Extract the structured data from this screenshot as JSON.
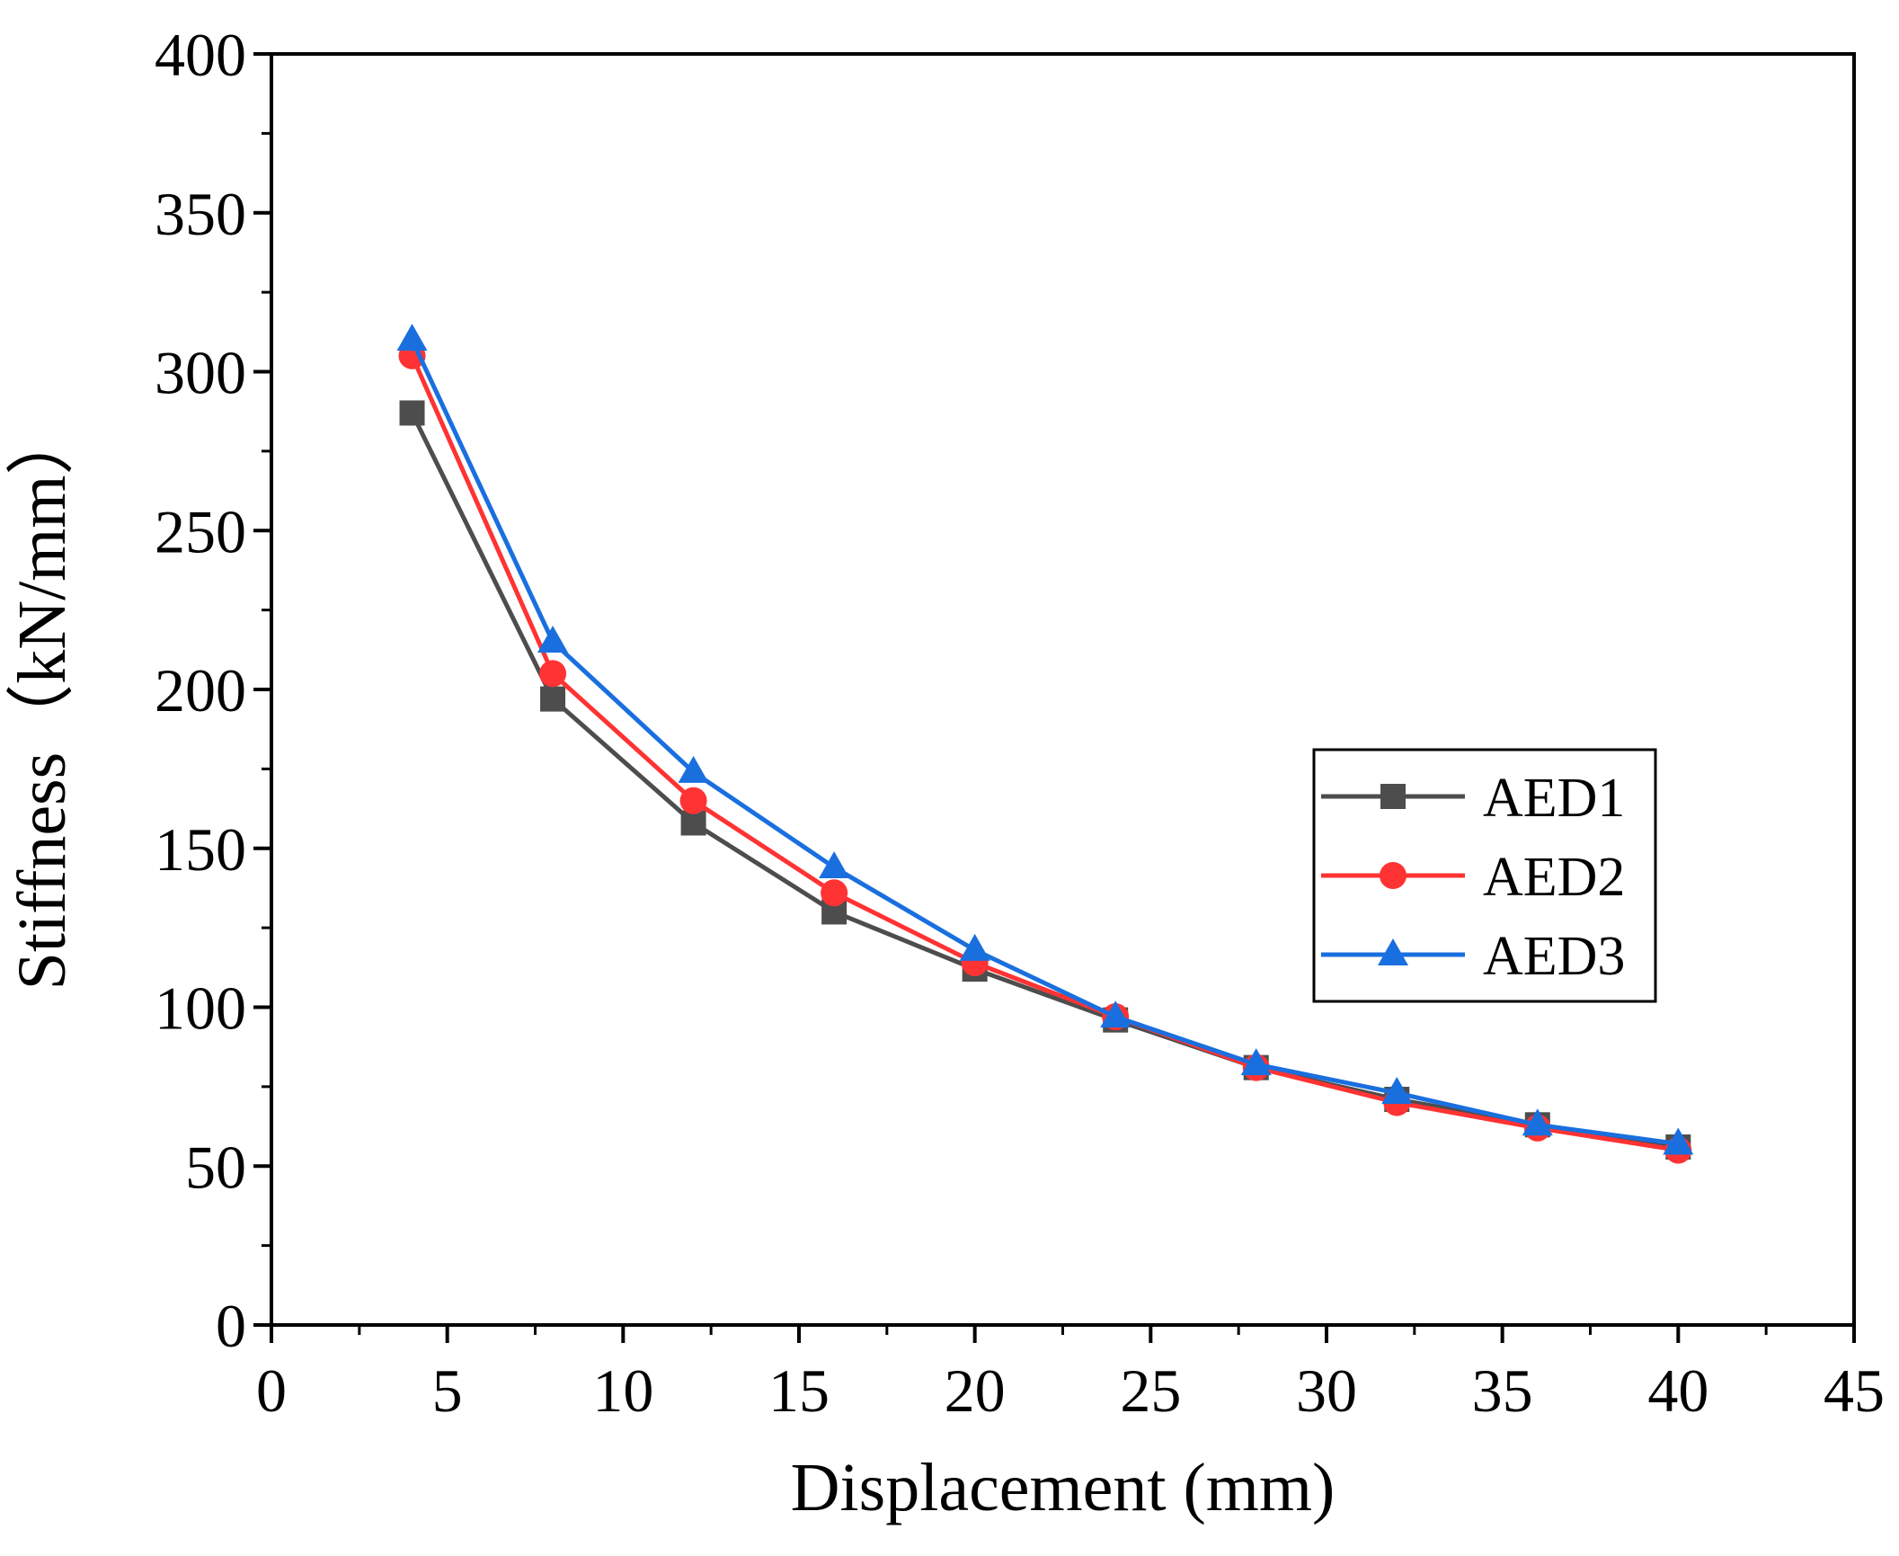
{
  "chart_data": {
    "type": "line",
    "title": "",
    "xlabel": "Displacement (mm)",
    "ylabel": "Stiffness（kN/mm）",
    "xlim": [
      0,
      45
    ],
    "ylim": [
      0,
      400
    ],
    "xticks": [
      0,
      5,
      10,
      15,
      20,
      25,
      30,
      35,
      40,
      45
    ],
    "yticks": [
      0,
      50,
      100,
      150,
      200,
      250,
      300,
      350,
      400
    ],
    "grid": false,
    "legend_position": "center-right",
    "x": [
      4,
      8,
      12,
      16,
      20,
      24,
      28,
      32,
      36,
      40
    ],
    "series": [
      {
        "name": "AED1",
        "marker": "square",
        "color": "#4d4d4d",
        "values": [
          287,
          197,
          158,
          130,
          112,
          96,
          81,
          71,
          63,
          56
        ]
      },
      {
        "name": "AED2",
        "marker": "circle",
        "color": "#ff3333",
        "values": [
          305,
          205,
          165,
          136,
          114,
          97,
          81,
          70,
          62,
          55
        ]
      },
      {
        "name": "AED3",
        "marker": "triangle",
        "color": "#1a6fdf",
        "values": [
          310,
          215,
          174,
          144,
          118,
          97,
          82,
          73,
          63,
          57
        ]
      }
    ]
  }
}
